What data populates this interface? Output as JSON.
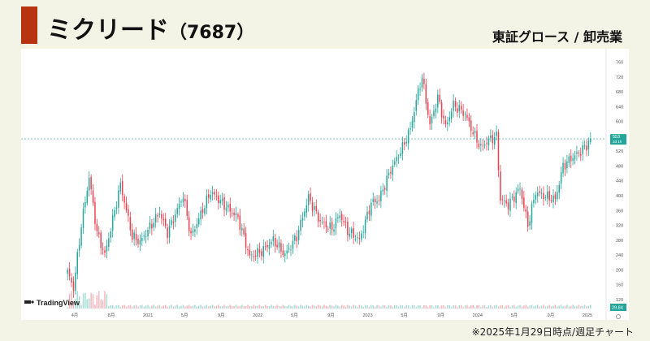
{
  "header": {
    "company_name": "ミクリード",
    "stock_code": "（7687）",
    "market_sector": "東証グロース / 卸売業"
  },
  "footer": {
    "note": "※2025年1月29日時点/週足チャート"
  },
  "watermark": {
    "logo_text": "TradingView"
  },
  "colors": {
    "accent": "#b8330f",
    "up": "#26a69a",
    "down": "#ef3f4f",
    "bg": "#f3f3e6"
  },
  "chart_data": {
    "type": "candlestick",
    "timeframe": "週足",
    "x_tick_labels": [
      "4月",
      "8月",
      "2021",
      "5月",
      "9月",
      "2022",
      "5月",
      "9月",
      "2023",
      "5月",
      "9月",
      "2024",
      "5月",
      "9月",
      "2025"
    ],
    "y_tick_labels": [
      "760",
      "720",
      "680",
      "640",
      "600",
      "560",
      "520",
      "480",
      "440",
      "400",
      "360",
      "320",
      "280",
      "240",
      "200",
      "160",
      "120"
    ],
    "ylim": [
      100,
      770
    ],
    "last_price_label": "553",
    "countdown_label": "2d 1h",
    "volume_label": "29.84",
    "anchors": [
      [
        0,
        195
      ],
      [
        3,
        150
      ],
      [
        7,
        320
      ],
      [
        11,
        450
      ],
      [
        15,
        300
      ],
      [
        19,
        240
      ],
      [
        27,
        430
      ],
      [
        33,
        290
      ],
      [
        37,
        275
      ],
      [
        47,
        355
      ],
      [
        51,
        300
      ],
      [
        59,
        400
      ],
      [
        63,
        290
      ],
      [
        73,
        410
      ],
      [
        79,
        380
      ],
      [
        87,
        340
      ],
      [
        93,
        235
      ],
      [
        99,
        250
      ],
      [
        105,
        280
      ],
      [
        111,
        240
      ],
      [
        117,
        290
      ],
      [
        123,
        395
      ],
      [
        129,
        330
      ],
      [
        135,
        310
      ],
      [
        139,
        350
      ],
      [
        143,
        305
      ],
      [
        149,
        280
      ],
      [
        155,
        380
      ],
      [
        159,
        390
      ],
      [
        165,
        470
      ],
      [
        171,
        530
      ],
      [
        175,
        580
      ],
      [
        179,
        680
      ],
      [
        181,
        720
      ],
      [
        185,
        590
      ],
      [
        189,
        665
      ],
      [
        193,
        585
      ],
      [
        197,
        645
      ],
      [
        203,
        620
      ],
      [
        207,
        570
      ],
      [
        211,
        530
      ],
      [
        215,
        550
      ],
      [
        219,
        560
      ],
      [
        221,
        390
      ],
      [
        225,
        375
      ],
      [
        231,
        420
      ],
      [
        235,
        320
      ],
      [
        239,
        410
      ],
      [
        243,
        400
      ],
      [
        249,
        390
      ],
      [
        253,
        480
      ],
      [
        257,
        500
      ],
      [
        261,
        515
      ],
      [
        265,
        535
      ],
      [
        267,
        553
      ]
    ]
  }
}
